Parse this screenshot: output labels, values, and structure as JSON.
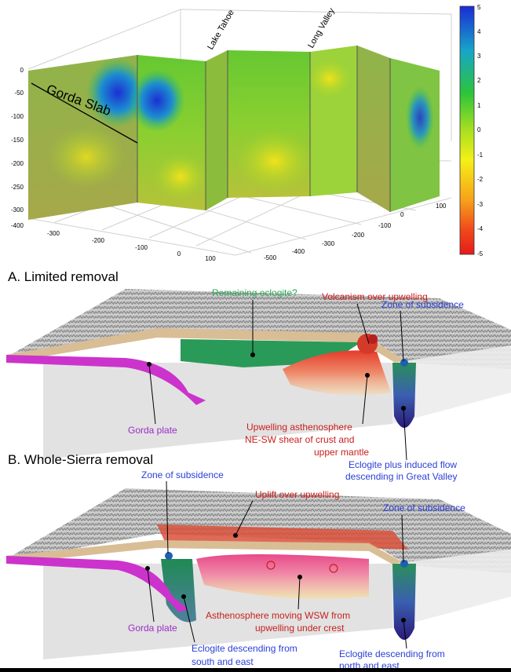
{
  "top_panel": {
    "slab_label": "Gorda Slab",
    "section_label_1": "Lake Tahoe",
    "section_label_2": "Long Valley",
    "z_ticks": [
      "0",
      "-50",
      "-100",
      "-150",
      "-200",
      "-250",
      "-300",
      "-400"
    ],
    "x_ticks": [
      "-300",
      "-200",
      "-100",
      "0",
      "100"
    ],
    "y_ticks": [
      "100",
      "0",
      "-100",
      "-200",
      "-300",
      "-400",
      "-500"
    ],
    "colorbar_ticks": [
      "5",
      "4",
      "3",
      "2",
      "1",
      "0",
      "-1",
      "-2",
      "-3",
      "-4",
      "-5"
    ]
  },
  "panel_a": {
    "title": "A. Limited removal",
    "labels": {
      "remaining_eclogite": "Remaining eclogite?",
      "volcanism": "Volcanism over upwelling",
      "zone_subsidence": "Zone of subsidence",
      "gorda_plate": "Gorda plate",
      "upwelling_1": "Upwelling asthenosphere",
      "upwelling_2": "NE-SW shear of crust and",
      "upwelling_3": "upper mantle",
      "eclogite_1": "Eclogite plus induced flow",
      "eclogite_2": "descending in Great Valley"
    }
  },
  "panel_b": {
    "title": "B. Whole-Sierra removal",
    "labels": {
      "zone_subsidence_left": "Zone of subsidence",
      "uplift": "Uplift over upwelling",
      "zone_subsidence_right": "Zone of subsidence",
      "gorda_plate": "Gorda plate",
      "astheno_1": "Asthenosphere moving WSW from",
      "astheno_2": "upwelling under crest",
      "eclogite_se_1": "Eclogite descending from",
      "eclogite_se_2": "south and east",
      "eclogite_ne_1": "Eclogite descending from",
      "eclogite_ne_2": "north and east"
    }
  },
  "colors": {
    "slab_magenta": "#cc33cc",
    "eclogite_green": "#1e9a55",
    "upwelling_red": "#d23a2a",
    "label_red": "#c8201e",
    "label_blue": "#2a3fd6",
    "label_purple": "#9b2cc6",
    "label_green": "#2ea85a"
  }
}
